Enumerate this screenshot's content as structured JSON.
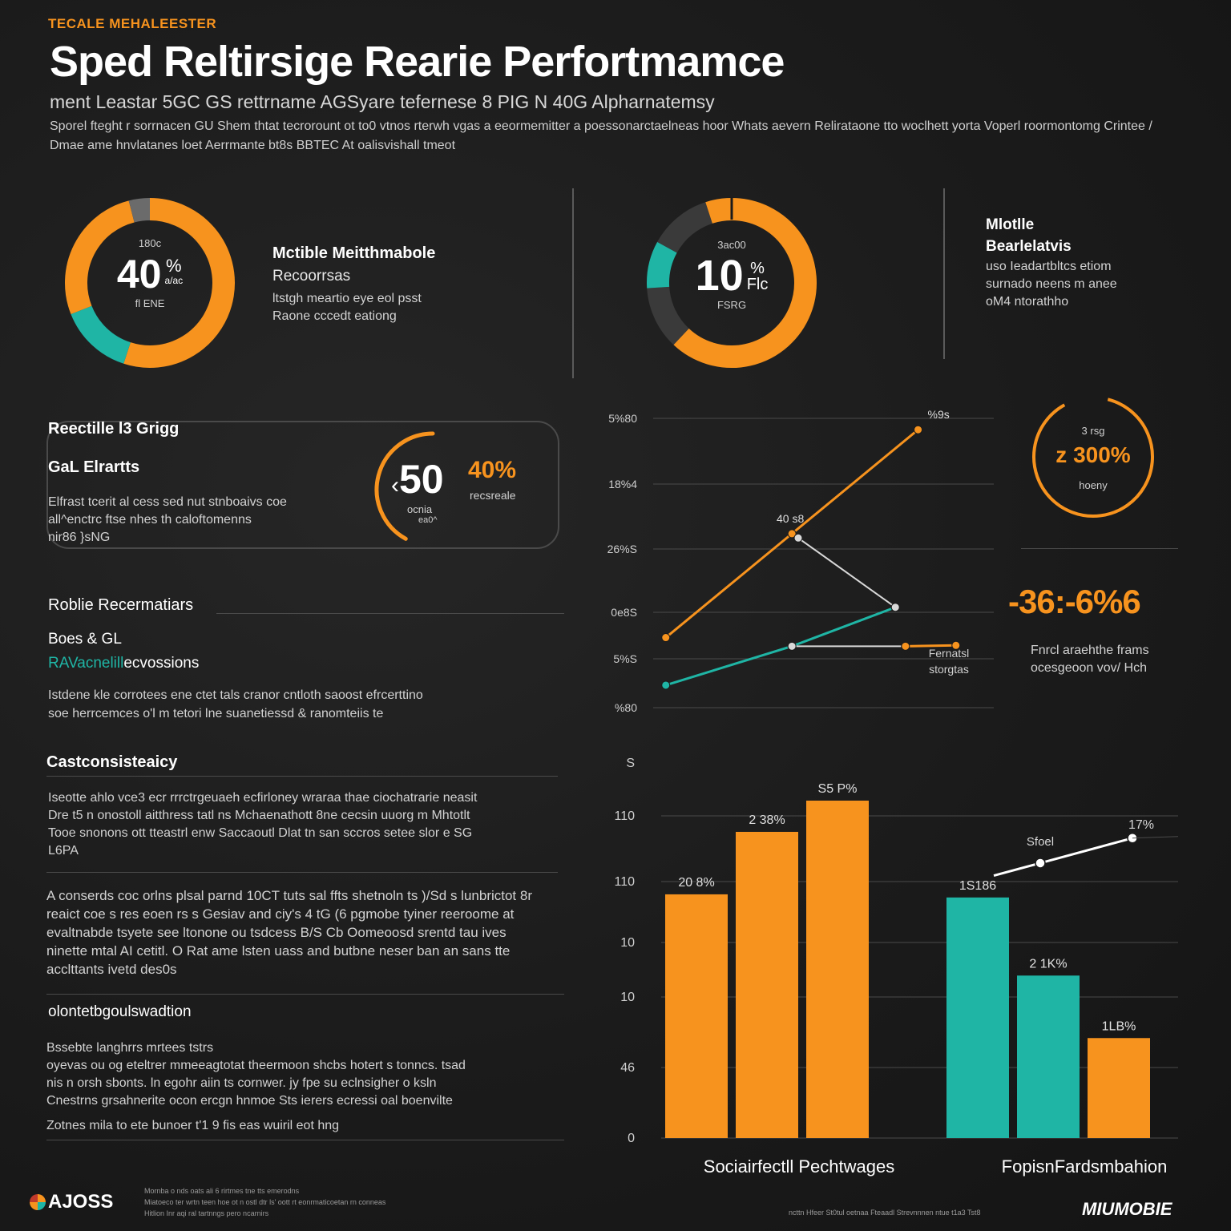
{
  "header": {
    "eyebrow": "TECALE MEHALEESTER",
    "title": "Sped Reltirsige Rearie Perfortmamce",
    "subtitle": "ment Leastar 5GC GS rettrname AGSyare tefernese 8 PIG N 40G Alpharnatemsy",
    "intro": "Sporel fteght r sorrnacen GU Shem thtat tecrorount ot to0 vtnos rterwh vgas a eeormemitter a poessonarctaelneas hoor Whats aevern Relirataone tto woclhett yorta Voperl roormontomg Crintee / Dmae ame hnvlatanes loet Aerrmante bt8s BBTEC At oalisvishall tmeot"
  },
  "kpi_left": {
    "top_label": "180c",
    "value": "40",
    "unit": "%",
    "unit_sub": "a/ac",
    "bottom_label": "fl ENE",
    "title1": "Mctible Meitthmabole",
    "title2": "Recoorrsas",
    "desc1": "ltstgh meartio eye eol psst",
    "desc2": "Raone cccedt eationg",
    "segments": [
      {
        "name": "orange-major",
        "fraction": 0.55,
        "color": "#f7931e"
      },
      {
        "name": "teal",
        "fraction": 0.14,
        "color": "#1fb5a5"
      },
      {
        "name": "orange-minor",
        "fraction": 0.27,
        "color": "#f7931e"
      },
      {
        "name": "gray",
        "fraction": 0.04,
        "color": "#6b6b6b"
      }
    ]
  },
  "kpi_center": {
    "top_label": "3ac00",
    "value": "10",
    "unit": "%",
    "unit_sub": "Flc",
    "bottom_label": "FSRG",
    "segments": [
      {
        "name": "orange",
        "fraction": 0.62,
        "color": "#f7931e"
      },
      {
        "name": "dark-gray-1",
        "fraction": 0.12,
        "color": "#3a3a3a"
      },
      {
        "name": "teal",
        "fraction": 0.09,
        "color": "#1fb5a5"
      },
      {
        "name": "dark-gray-2",
        "fraction": 0.12,
        "color": "#3a3a3a"
      },
      {
        "name": "orange-tail",
        "fraction": 0.05,
        "color": "#f7931e"
      }
    ]
  },
  "kpi_right": {
    "title1": "Mlotlle",
    "title2": "Bearlelatvis",
    "desc": [
      "uso Ieadartbltcs etiom",
      "surnado neens m anee",
      "oM4 ntorathho"
    ]
  },
  "card": {
    "heading": "Reectille l3 Grigg",
    "subheading": "GaL Elrartts",
    "desc": [
      "Elfrast tcerit al cess sed nut stnboaivs coe",
      "all^enctrc ftse nhes th caloftomenns",
      "nir86 }sNG"
    ],
    "value": "50",
    "value_prefix": "‹",
    "percent": "40%",
    "percent_label": "recsreale",
    "value_sub1": "ocnia",
    "value_sub2": "ea0^",
    "arc_fraction": 0.42
  },
  "section_robile": {
    "heading": "Roblie Recermatiars",
    "sub1": "Boes & GL",
    "sub2_teal": "RAVacnelill",
    "sub2_rest": "ecvossions",
    "desc": [
      "Istdene kle corrotees ene ctet tals cranor cntloth saoost efrcerttino",
      "soe herrcemces o'l m tetori lne suanetiessd & ranomteiis te"
    ]
  },
  "section_cast": {
    "heading": "Castconsisteaicy",
    "para1": [
      "Iseotte ahlo vce3 ecr rrrctrgeuaeh ecfirloney wraraa thae ciochatrarie neasit",
      "Dre t5 n onostoll aitthress tatl ns Mchaenathott 8ne cecsin uuorg m Mhtotlt",
      "Tooe snonons ott tteastrl enw Saccaoutl Dlat tn san sccros setee slor e SG",
      "L6PA"
    ],
    "para2": [
      "A conserds coc orlns plsal parnd 10CT tuts sal ffts shetnoln ts )/Sd s lunbrictot 8r",
      "reaict coe s res eoen rs s Gesiav and ciy's 4 tG (6 pgmobe tyiner reeroome at",
      "evaltnabde tsyete see ltonone ou tsdcess B/S Cb Oomeoosd srentd tau ives",
      "ninette mtal AI cetitl. O Rat ame lsten uass and butbne neser ban an sans tte",
      "acclttants ivetd des0s"
    ]
  },
  "section_olon": {
    "heading": "olontetbgoulswadtion",
    "lines": [
      "Bssebte langhrrs mrtees tstrs",
      "oyevas ou og eteltrer mmeeagtotat theermoon shcbs hotert s tonncs. tsad",
      "nis n orsh sbonts. ln egohr aiin ts cornwer. jy fpe su eclnsigher o ksln",
      "Cnestrns grsahnerite ocon ercgn hnmoe Sts ierers ecressi oal boenvilte",
      "Zotnes mila to ete bunoer t'1 9 fis eas wuiril eot hng"
    ]
  },
  "footer": {
    "logo": "AJOSS",
    "notes": [
      "Mornba o nds oats ali 6 rirtmes tne tts emerodns",
      "Miatoeco ter wrtn teen hoe ot n ostl dtr ls' oott rt eonrmaticoetan rn conneas",
      "Hitlion Inr aqi ral tartnngs pero ncarnirs"
    ],
    "right_note": "ncttn Hfeer St0tul oetnaa Fteaadl Strevnnnen ntue t1a3 Tst8",
    "brand": "MIUMOBIE"
  },
  "colors": {
    "orange": "#f7931e",
    "teal": "#1fb5a5",
    "white": "#ffffff",
    "grid": "#4a4a4a"
  },
  "chart_data": [
    {
      "type": "line",
      "y_tick_labels": [
        "5%80",
        "18%4",
        "26%S",
        "0e8S",
        "5%S",
        "%80"
      ],
      "series": [
        {
          "name": "orange",
          "color": "#f7931e",
          "points": [
            {
              "x": 0,
              "y": 1.2
            },
            {
              "x": 1,
              "y": 3.6
            },
            {
              "x": 2,
              "y": 6.0
            }
          ],
          "labels": [
            "",
            "40 s8",
            "%9s"
          ]
        },
        {
          "name": "teal",
          "color": "#1fb5a5",
          "points": [
            {
              "x": 0,
              "y": 0.1
            },
            {
              "x": 1,
              "y": 1.0
            },
            {
              "x": 1.82,
              "y": 1.9
            }
          ]
        },
        {
          "name": "white-connector",
          "color": "#d9d9d9",
          "points": [
            {
              "x": 1.05,
              "y": 3.5
            },
            {
              "x": 1.82,
              "y": 1.9
            }
          ]
        },
        {
          "name": "white-flat",
          "color": "#d9d9d9",
          "points": [
            {
              "x": 1.0,
              "y": 1.0
            },
            {
              "x": 1.9,
              "y": 1.0
            }
          ]
        },
        {
          "name": "orange-short",
          "color": "#f7931e",
          "points": [
            {
              "x": 1.9,
              "y": 1.0
            },
            {
              "x": 2.3,
              "y": 1.02
            }
          ]
        }
      ],
      "x_range": [
        -0.1,
        2.6
      ],
      "y_range": [
        -0.4,
        6.3
      ],
      "annotation_bottom": [
        "Fernatsl",
        "storgtas"
      ]
    },
    {
      "type": "bar",
      "y_tick_labels": [
        "S",
        "110",
        "110",
        "10",
        "10",
        "46",
        "0"
      ],
      "groups": [
        {
          "label": "Sociairfectll Pechtwages",
          "color": "#f7931e",
          "bars": [
            {
              "value": 78,
              "label": "20 8%"
            },
            {
              "value": 98,
              "label": "2 38%"
            },
            {
              "value": 108,
              "label": "S5 P%"
            }
          ]
        },
        {
          "label": "FopisnFardsmbahion",
          "bars": [
            {
              "value": 77,
              "label": "1S186",
              "color": "#1fb5a5"
            },
            {
              "value": 52,
              "label": "2 1K%",
              "color": "#1fb5a5"
            },
            {
              "value": 32,
              "label": "1LB%",
              "color": "#f7931e"
            }
          ]
        }
      ],
      "ylim": [
        0,
        118
      ],
      "trend_line": {
        "label": "Sfoel",
        "end_label": "17%",
        "values": [
          84,
          88,
          96
        ]
      }
    }
  ],
  "ring_right": {
    "top_label": "3 rsg",
    "value": "z 300%",
    "bottom_label": "hoeny",
    "fraction": 0.88
  },
  "big_stat": {
    "value": "-36:-6%6",
    "desc": [
      "Fnrcl araehthe frams",
      "ocesgeoon vov/ Hch"
    ]
  }
}
